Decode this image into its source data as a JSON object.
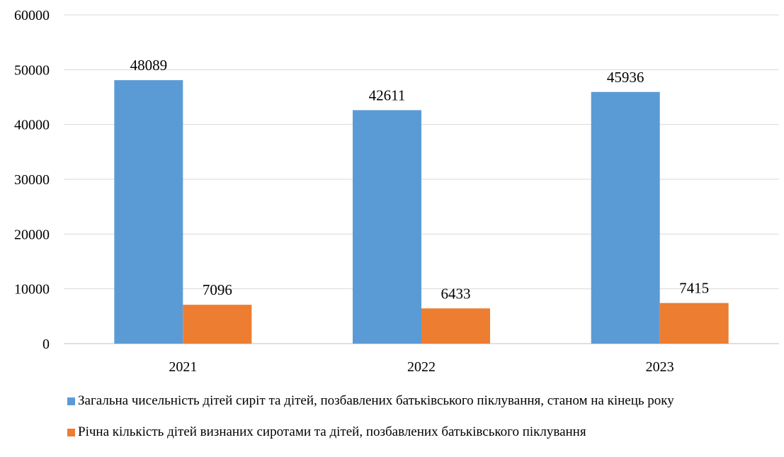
{
  "chart_data": {
    "type": "bar",
    "categories": [
      "2021",
      "2022",
      "2023"
    ],
    "series": [
      {
        "name": "Загальна чисельність дітей сиріт та дітей, позбавлених батьківського піклування, станом на кінець року",
        "values": [
          48089,
          42611,
          45936
        ],
        "color": "#5B9BD5"
      },
      {
        "name": "Річна кількість дітей визнаних сиротами та дітей, позбавлених батьківського піклування",
        "values": [
          7096,
          6433,
          7415
        ],
        "color": "#ED7D31"
      }
    ],
    "ylim": [
      0,
      60000
    ],
    "yticks": [
      "0",
      "10000",
      "20000",
      "30000",
      "40000",
      "50000",
      "60000"
    ],
    "data_labels": [
      [
        "48089",
        "42611",
        "45936"
      ],
      [
        "7096",
        "6433",
        "7415"
      ]
    ],
    "grid": true,
    "legend_position": "bottom"
  }
}
